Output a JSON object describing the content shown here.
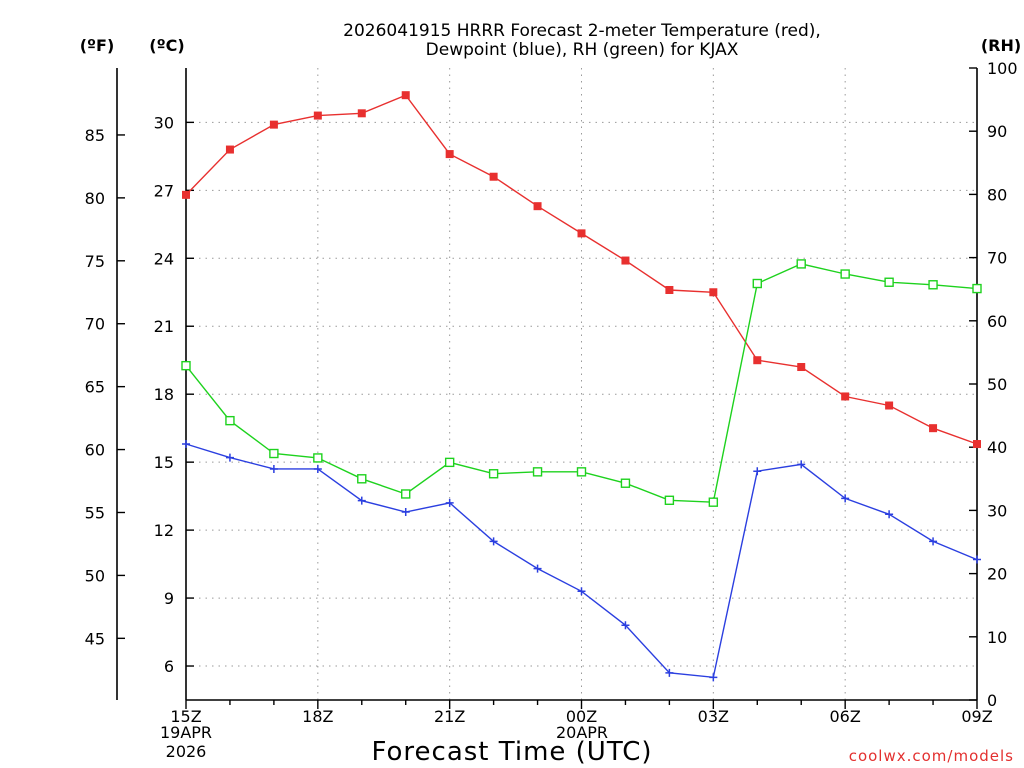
{
  "header": {
    "title_line1": "2026041915 HRRR Forecast 2-meter Temperature (red),",
    "title_line2": "Dewpoint (blue), RH (green) for KJAX"
  },
  "axes": {
    "left_outer_unit": "(ºF)",
    "left_inner_unit": "(ºC)",
    "right_unit": "(RH)",
    "xlabel": "Forecast Time (UTC)",
    "date_label_1_line1": "19APR",
    "date_label_1_line2": "2026",
    "date_label_2_line1": "20APR"
  },
  "footer": {
    "credit": "coolwx.com/models"
  },
  "colors": {
    "temperature": "#e8302f",
    "dewpoint": "#2b3fe0",
    "rh": "#1ed21e"
  },
  "chart_data": {
    "type": "line",
    "title": "2026041915 HRRR Forecast 2-meter Temperature (red), Dewpoint (blue), RH (green) for KJAX",
    "xlabel": "Forecast Time (UTC)",
    "x": [
      "15Z",
      "16Z",
      "17Z",
      "18Z",
      "19Z",
      "20Z",
      "21Z",
      "22Z",
      "23Z",
      "00Z",
      "01Z",
      "02Z",
      "03Z",
      "04Z",
      "05Z",
      "06Z",
      "07Z",
      "08Z",
      "09Z"
    ],
    "x_tick_labels": [
      "15Z",
      "18Z",
      "21Z",
      "00Z",
      "03Z",
      "06Z",
      "09Z"
    ],
    "x_tick_indices": [
      0,
      3,
      6,
      9,
      12,
      15,
      18
    ],
    "celsius_axis": {
      "lim": [
        4.5,
        32.4
      ],
      "ticks": [
        6,
        9,
        12,
        15,
        18,
        21,
        24,
        27,
        30
      ]
    },
    "fahrenheit_axis": {
      "ticks": [
        45,
        50,
        55,
        60,
        65,
        70,
        75,
        80,
        85
      ]
    },
    "rh_axis": {
      "lim": [
        0,
        100
      ],
      "ticks": [
        0,
        10,
        20,
        30,
        40,
        50,
        60,
        70,
        80,
        90,
        100
      ]
    },
    "grid": true,
    "series": [
      {
        "name": "Temperature",
        "axis": "celsius",
        "marker": "filled-square",
        "values": [
          26.8,
          28.8,
          29.9,
          30.3,
          30.4,
          31.2,
          28.6,
          27.6,
          26.3,
          25.1,
          23.9,
          22.6,
          22.5,
          19.5,
          19.2,
          17.9,
          17.5,
          16.5,
          15.8
        ]
      },
      {
        "name": "Dewpoint",
        "axis": "celsius",
        "marker": "plus",
        "values": [
          15.8,
          15.2,
          14.7,
          14.7,
          13.3,
          12.8,
          13.2,
          11.5,
          10.3,
          9.3,
          7.8,
          5.7,
          5.5,
          14.6,
          14.9,
          13.4,
          12.7,
          11.5,
          10.7
        ]
      },
      {
        "name": "RH",
        "axis": "rh",
        "marker": "open-square",
        "values": [
          52.9,
          44.2,
          39.0,
          38.3,
          35.0,
          32.6,
          37.6,
          35.8,
          36.1,
          36.1,
          34.3,
          31.6,
          31.3,
          65.9,
          69.0,
          67.4,
          66.1,
          65.7,
          65.1
        ]
      }
    ]
  }
}
